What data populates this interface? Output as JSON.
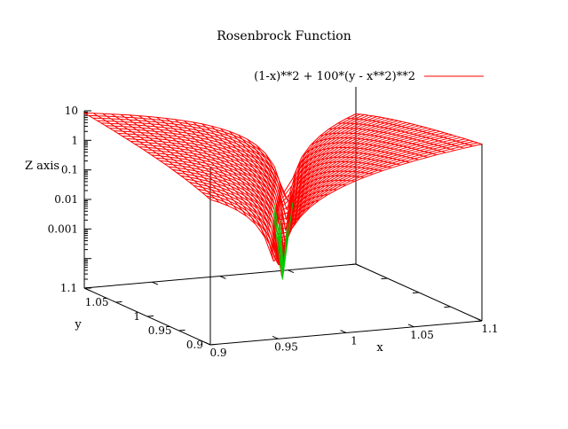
{
  "chart_data": {
    "type": "surface",
    "title": "Rosenbrock Function",
    "legend": "(1-x)**2 + 100*(y - x**2)**2",
    "formula": "z = (1-x)**2 + 100*(y - x**2)**2",
    "samples": 31,
    "x": {
      "label": "x",
      "min": 0.9,
      "max": 1.1,
      "ticks": [
        "0.9",
        "0.95",
        "1",
        "1.05",
        "1.1"
      ],
      "tick_values": [
        0.9,
        0.95,
        1,
        1.05,
        1.1
      ]
    },
    "y": {
      "label": "y",
      "min": 0.9,
      "max": 1.1,
      "ticks": [
        "0.9",
        "0.95",
        "1",
        "1.05",
        "1.1"
      ],
      "tick_values": [
        0.9,
        0.95,
        1,
        1.05,
        1.1
      ]
    },
    "z": {
      "label": "Z axis",
      "scale": "log",
      "min": 1e-05,
      "max": 10,
      "ticks": [
        "10",
        "1",
        "0.1",
        "0.01",
        "0.001"
      ],
      "tick_values": [
        10,
        1,
        0.1,
        0.01,
        0.001
      ]
    },
    "minimum": {
      "x": 1,
      "y": 1,
      "z": 0
    },
    "colors": {
      "surface": "#ff0000",
      "clipped": "#00cc00",
      "frame": "#000000",
      "background": "#ffffff"
    }
  }
}
